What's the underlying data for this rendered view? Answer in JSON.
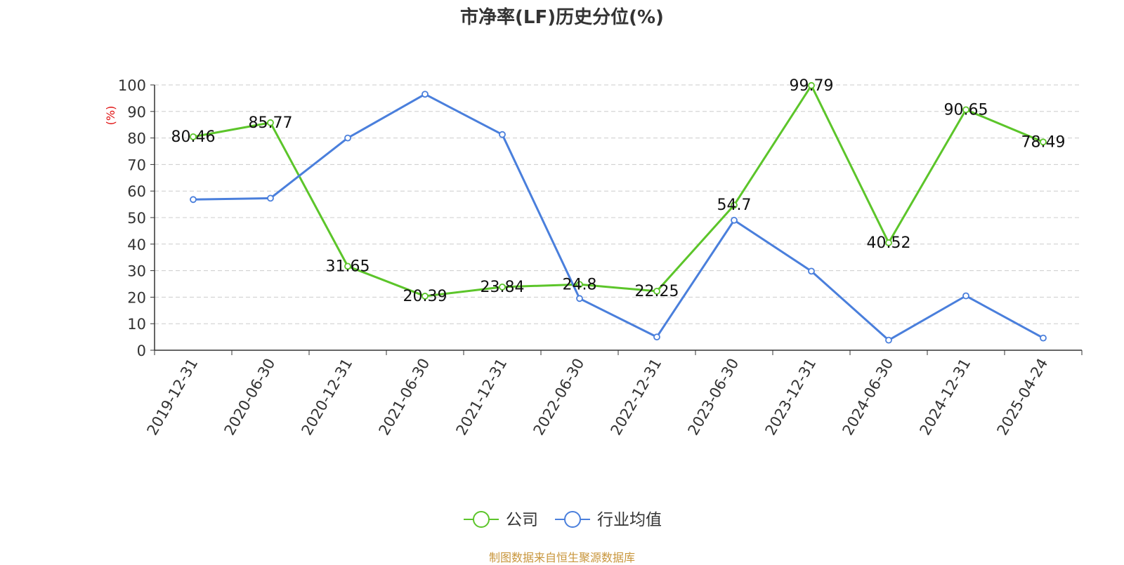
{
  "title": "市净率(LF)历史分位(%)",
  "footer": "制图数据来自恒生聚源数据库",
  "chart_data": {
    "type": "line",
    "title": "市净率(LF)历史分位(%)",
    "ylabel": "(%)",
    "xlabel": "",
    "ylim": [
      0,
      100
    ],
    "yticks": [
      0,
      10,
      20,
      30,
      40,
      50,
      60,
      70,
      80,
      90,
      100
    ],
    "grid": true,
    "legend_position": "bottom-center",
    "categories": [
      "2019-12-31",
      "2020-06-30",
      "2020-12-31",
      "2021-06-30",
      "2021-12-31",
      "2022-06-30",
      "2022-12-31",
      "2023-06-30",
      "2023-12-31",
      "2024-06-30",
      "2024-12-31",
      "2025-04-24"
    ],
    "series": [
      {
        "name": "公司",
        "color": "#5cc52a",
        "values": [
          80.46,
          85.77,
          31.65,
          20.39,
          23.84,
          24.8,
          22.25,
          54.7,
          99.79,
          40.52,
          90.65,
          78.49
        ],
        "labels": [
          "80.46",
          "85.77",
          "31.65",
          "20.39",
          "23.84",
          "24.8",
          "22.25",
          "54.7",
          "99.79",
          "40.52",
          "90.65",
          "78.49"
        ]
      },
      {
        "name": "行业均值",
        "color": "#4a7fdc",
        "values": [
          56.8,
          57.3,
          80.0,
          96.5,
          81.3,
          19.5,
          5.0,
          49.0,
          29.8,
          3.8,
          20.5,
          4.6
        ]
      }
    ]
  }
}
